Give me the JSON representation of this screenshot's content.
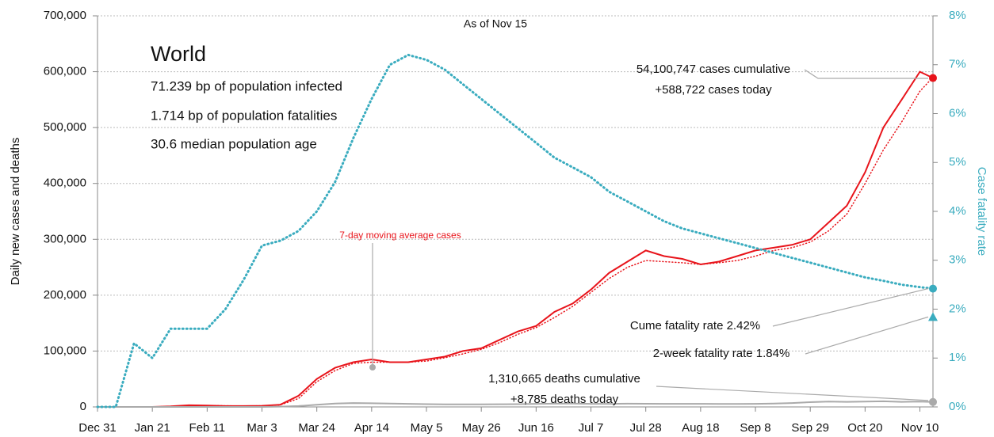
{
  "chart_data": {
    "type": "line",
    "subtitle": "As of Nov 15",
    "title": "World",
    "ylabel": "Daily new cases and deaths",
    "y2label": "Case fatality rate",
    "x": [
      "Dec 31",
      "Jan 7",
      "Jan 14",
      "Jan 21",
      "Jan 28",
      "Feb 4",
      "Feb 11",
      "Feb 18",
      "Feb 25",
      "Mar 3",
      "Mar 10",
      "Mar 17",
      "Mar 24",
      "Mar 31",
      "Apr 7",
      "Apr 14",
      "Apr 21",
      "Apr 28",
      "May 5",
      "May 12",
      "May 19",
      "May 26",
      "Jun 2",
      "Jun 9",
      "Jun 16",
      "Jun 23",
      "Jun 30",
      "Jul 7",
      "Jul 14",
      "Jul 21",
      "Jul 28",
      "Aug 4",
      "Aug 11",
      "Aug 18",
      "Aug 25",
      "Sep 1",
      "Sep 8",
      "Sep 15",
      "Sep 22",
      "Sep 29",
      "Oct 6",
      "Oct 13",
      "Oct 20",
      "Oct 27",
      "Nov 3",
      "Nov 10",
      "Nov 15"
    ],
    "xlim": [
      "Dec 31",
      "Nov 15"
    ],
    "xticks": [
      "Dec 31",
      "Jan 21",
      "Feb 11",
      "Mar 3",
      "Mar 24",
      "Apr 14",
      "May 5",
      "May 26",
      "Jun 16",
      "Jul 7",
      "Jul 28",
      "Aug 18",
      "Sep 8",
      "Sep 29",
      "Oct 20",
      "Nov 10"
    ],
    "ylim": [
      0,
      700000
    ],
    "yticks": [
      0,
      {
        "value": 100000,
        "label": "100,000"
      },
      {
        "value": 200000,
        "label": "200,000"
      },
      {
        "value": 300000,
        "label": "300,000"
      },
      {
        "value": 400000,
        "label": "400,000"
      },
      {
        "value": 500000,
        "label": "500,000"
      },
      {
        "value": 600000,
        "label": "600,000"
      },
      {
        "value": 700000,
        "label": "700,000"
      }
    ],
    "y2lim": [
      0,
      8
    ],
    "y2ticks": [
      {
        "value": 0,
        "label": "0%"
      },
      {
        "value": 1,
        "label": "1%"
      },
      {
        "value": 2,
        "label": "2%"
      },
      {
        "value": 3,
        "label": "3%"
      },
      {
        "value": 4,
        "label": "4%"
      },
      {
        "value": 5,
        "label": "5%"
      },
      {
        "value": 6,
        "label": "6%"
      },
      {
        "value": 7,
        "label": "7%"
      },
      {
        "value": 8,
        "label": "8%"
      }
    ],
    "grid": true,
    "series": [
      {
        "name": "Daily cases",
        "color": "#e8141b",
        "style": "solid",
        "values": [
          0,
          0,
          0,
          0,
          1000,
          3000,
          2500,
          1500,
          1500,
          2000,
          4000,
          20000,
          50000,
          70000,
          80000,
          85000,
          80000,
          80000,
          85000,
          90000,
          100000,
          105000,
          120000,
          135000,
          145000,
          170000,
          185000,
          210000,
          240000,
          260000,
          280000,
          270000,
          265000,
          255000,
          260000,
          270000,
          280000,
          285000,
          290000,
          300000,
          330000,
          360000,
          420000,
          500000,
          550000,
          600000,
          588722
        ]
      },
      {
        "name": "7-day moving average cases",
        "color": "#e8141b",
        "style": "dotted",
        "values": [
          0,
          0,
          0,
          0,
          1000,
          2500,
          2500,
          2000,
          1500,
          2000,
          3500,
          15000,
          45000,
          65000,
          78000,
          80000,
          80000,
          80000,
          82000,
          88000,
          95000,
          103000,
          115000,
          130000,
          142000,
          160000,
          180000,
          205000,
          230000,
          250000,
          262000,
          260000,
          258000,
          255000,
          258000,
          262000,
          270000,
          280000,
          285000,
          295000,
          315000,
          345000,
          400000,
          460000,
          510000,
          565000,
          590000
        ]
      },
      {
        "name": "Daily deaths",
        "color": "#aaaaaa",
        "style": "solid",
        "values": [
          0,
          0,
          0,
          0,
          0,
          0,
          0,
          0,
          0,
          0,
          500,
          1500,
          4000,
          6000,
          7000,
          6500,
          6000,
          5500,
          5000,
          4500,
          4500,
          4500,
          4800,
          5000,
          5500,
          5800,
          6000,
          5500,
          5500,
          5800,
          5700,
          5500,
          5500,
          5500,
          5400,
          5300,
          5500,
          6000,
          7000,
          8500,
          9500,
          9000,
          9500,
          10000,
          9000,
          9500,
          8785
        ]
      },
      {
        "name": "Cume fatality rate",
        "color": "#3aacbf",
        "style": "dotted",
        "axis": "y2",
        "values": [
          0,
          0,
          1.3,
          1.0,
          1.6,
          1.6,
          1.6,
          2.0,
          2.6,
          3.3,
          3.4,
          3.6,
          4.0,
          4.6,
          5.5,
          6.3,
          7.0,
          7.2,
          7.1,
          6.9,
          6.6,
          6.3,
          6.0,
          5.7,
          5.4,
          5.1,
          4.9,
          4.7,
          4.4,
          4.2,
          4.0,
          3.8,
          3.65,
          3.55,
          3.45,
          3.35,
          3.25,
          3.15,
          3.05,
          2.95,
          2.85,
          2.75,
          2.65,
          2.58,
          2.5,
          2.45,
          2.42
        ]
      }
    ],
    "two_week_fatality_rate": 1.84,
    "stats": [
      "71.239 bp of population infected",
      "1.714 bp of population fatalities",
      "30.6 median population age"
    ],
    "annotations": [
      "54,100,747 cases cumulative",
      "+588,722 cases today",
      "7-day moving average cases",
      "Cume fatality rate 2.42%",
      "2-week fatality rate 1.84%",
      "1,310,665 deaths cumulative",
      "+8,785 deaths today"
    ]
  }
}
